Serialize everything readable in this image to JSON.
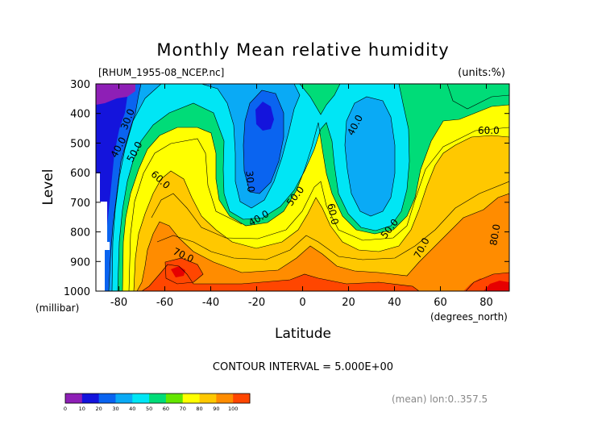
{
  "chart_data": {
    "type": "heatmap",
    "title": "Monthly Mean relative humidity",
    "file_label": "[RHUM_1955-08_NCEP.nc]",
    "units_label": "(units:%)",
    "xlabel": "Latitude",
    "ylabel": "Level",
    "x_unit_label": "(degrees_north)",
    "y_unit_label": "(millibar)",
    "xlim": [
      -90,
      90
    ],
    "ylim": [
      1000,
      300
    ],
    "x_ticks": [
      -80,
      -60,
      -40,
      -20,
      0,
      20,
      40,
      60,
      80
    ],
    "x_tick_labels": [
      "-80",
      "-60",
      "-40",
      "-20",
      "0",
      "20",
      "40",
      "60",
      "80"
    ],
    "y_ticks": [
      300,
      400,
      500,
      600,
      700,
      800,
      900,
      1000
    ],
    "y_tick_labels": [
      "300",
      "400",
      "500",
      "600",
      "700",
      "800",
      "900",
      "1000"
    ],
    "contour_interval_text": "CONTOUR INTERVAL = 5.000E+00",
    "averaging_note": "(mean) lon:0..357.5",
    "colorbar": {
      "levels": [
        0,
        10,
        20,
        30,
        40,
        50,
        60,
        70,
        80,
        90,
        100
      ],
      "labels": [
        "0",
        "10",
        "20",
        "30",
        "40",
        "50",
        "60",
        "70",
        "80",
        "90",
        "100"
      ],
      "colors": [
        "#8e1fb6",
        "#1414dc",
        "#0a64f0",
        "#0aaaf5",
        "#00e6f5",
        "#00dc78",
        "#64e600",
        "#ffff00",
        "#ffc800",
        "#ff8c00",
        "#ff4600",
        "#e60000"
      ]
    },
    "contour_labels": [
      {
        "text": "30.0",
        "lat": -76,
        "level": 420,
        "angle": -68
      },
      {
        "text": "40.0",
        "lat": -80,
        "level": 515,
        "angle": -62
      },
      {
        "text": "50.0",
        "lat": -73,
        "level": 530,
        "angle": -62
      },
      {
        "text": "60.0",
        "lat": -62,
        "level": 625,
        "angle": 42
      },
      {
        "text": "70.0",
        "lat": -52,
        "level": 880,
        "angle": 25
      },
      {
        "text": "30.0",
        "lat": -23,
        "level": 630,
        "angle": 85
      },
      {
        "text": "40.0",
        "lat": -19,
        "level": 755,
        "angle": -30
      },
      {
        "text": "50.0",
        "lat": -3,
        "level": 680,
        "angle": -52
      },
      {
        "text": "60.0",
        "lat": 13,
        "level": 740,
        "angle": 78
      },
      {
        "text": "40.0",
        "lat": 23,
        "level": 440,
        "angle": -62
      },
      {
        "text": "50.0",
        "lat": 38,
        "level": 790,
        "angle": -52
      },
      {
        "text": "70.0",
        "lat": 52,
        "level": 855,
        "angle": -62
      },
      {
        "text": "60.0",
        "lat": 81,
        "level": 460,
        "angle": 0
      },
      {
        "text": "80.0",
        "lat": 84,
        "level": 810,
        "angle": -80
      }
    ],
    "grid": false,
    "legend": "bottom-left"
  }
}
